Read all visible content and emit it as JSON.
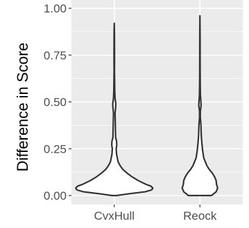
{
  "chart_data": {
    "type": "violin",
    "title": "",
    "xlabel": "",
    "ylabel": "Difference in Score",
    "ylim": [
      -0.02,
      1.0
    ],
    "grid": true,
    "legend": "none",
    "categories": [
      "CvxHull",
      "Reock"
    ],
    "y_ticks": [
      {
        "value": 0.0,
        "label": "0.00"
      },
      {
        "value": 0.25,
        "label": "0.25"
      },
      {
        "value": 0.5,
        "label": "0.50"
      },
      {
        "value": 0.75,
        "label": "0.75"
      },
      {
        "value": 1.0,
        "label": "1.00"
      }
    ],
    "violins": [
      {
        "category": "CvxHull",
        "profile": [
          [
            0.0,
            0.06
          ],
          [
            0.01,
            0.4
          ],
          [
            0.02,
            0.8
          ],
          [
            0.03,
            0.97
          ],
          [
            0.04,
            1.0
          ],
          [
            0.05,
            0.95
          ],
          [
            0.06,
            0.82
          ],
          [
            0.08,
            0.62
          ],
          [
            0.1,
            0.46
          ],
          [
            0.12,
            0.33
          ],
          [
            0.14,
            0.22
          ],
          [
            0.16,
            0.15
          ],
          [
            0.18,
            0.1
          ],
          [
            0.2,
            0.08
          ],
          [
            0.22,
            0.06
          ],
          [
            0.25,
            0.05
          ],
          [
            0.27,
            0.065
          ],
          [
            0.29,
            0.06
          ],
          [
            0.31,
            0.035
          ],
          [
            0.35,
            0.03
          ],
          [
            0.4,
            0.025
          ],
          [
            0.44,
            0.02
          ],
          [
            0.47,
            0.035
          ],
          [
            0.49,
            0.04
          ],
          [
            0.52,
            0.02
          ],
          [
            0.56,
            0.012
          ],
          [
            0.6,
            0.01
          ],
          [
            0.66,
            0.005
          ],
          [
            0.72,
            0.007
          ],
          [
            0.8,
            0.006
          ],
          [
            0.86,
            0.005
          ],
          [
            0.92,
            0.0
          ]
        ]
      },
      {
        "category": "Reock",
        "profile": [
          [
            0.0,
            0.3
          ],
          [
            0.02,
            0.42
          ],
          [
            0.04,
            0.46
          ],
          [
            0.06,
            0.43
          ],
          [
            0.08,
            0.42
          ],
          [
            0.1,
            0.38
          ],
          [
            0.12,
            0.32
          ],
          [
            0.14,
            0.24
          ],
          [
            0.16,
            0.18
          ],
          [
            0.18,
            0.14
          ],
          [
            0.2,
            0.1
          ],
          [
            0.24,
            0.07
          ],
          [
            0.28,
            0.05
          ],
          [
            0.32,
            0.035
          ],
          [
            0.38,
            0.025
          ],
          [
            0.42,
            0.01
          ],
          [
            0.45,
            0.01
          ],
          [
            0.48,
            0.03
          ],
          [
            0.5,
            0.025
          ],
          [
            0.54,
            0.012
          ],
          [
            0.6,
            0.008
          ],
          [
            0.66,
            0.006
          ],
          [
            0.72,
            0.005
          ],
          [
            0.8,
            0.005
          ],
          [
            0.88,
            0.003
          ],
          [
            0.96,
            0.0
          ]
        ]
      }
    ]
  },
  "colors": {
    "panel": "#ebebeb",
    "grid_major": "#ffffff",
    "violin_fill": "#ffffff",
    "violin_stroke": "#333333",
    "tick_text": "#4d4d4d",
    "tick_mark": "#333333"
  }
}
